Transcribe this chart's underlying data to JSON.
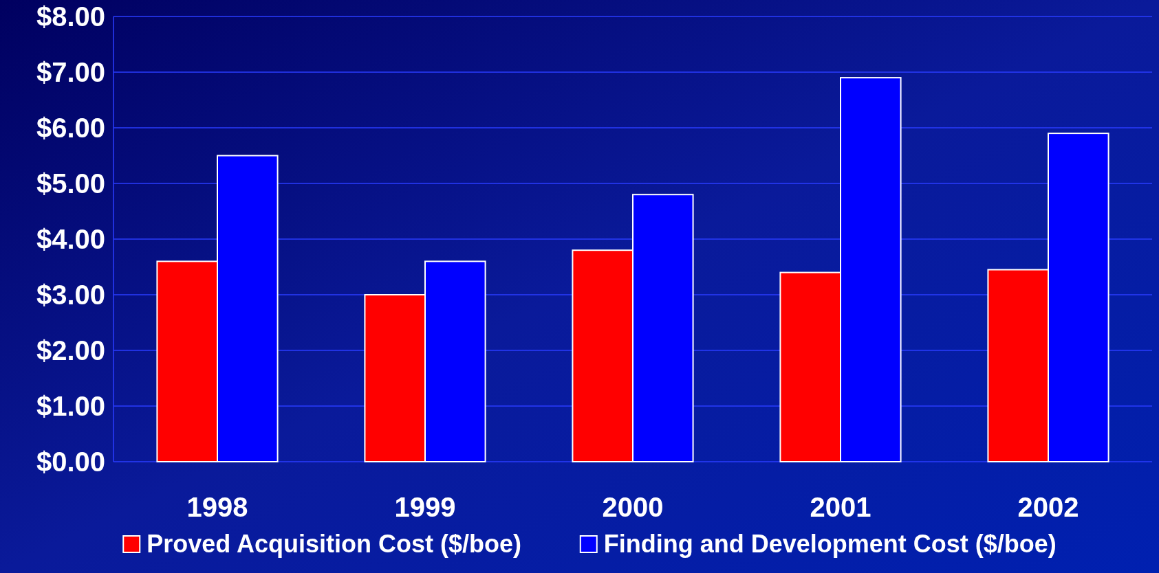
{
  "chart_data": {
    "type": "bar",
    "categories": [
      "1998",
      "1999",
      "2000",
      "2001",
      "2002"
    ],
    "series": [
      {
        "name": "Proved Acquisition Cost ($/boe)",
        "color": "#ff0000",
        "values": [
          3.6,
          3.0,
          3.8,
          3.4,
          3.45
        ]
      },
      {
        "name": "Finding and Development Cost ($/boe)",
        "color": "#0000ff",
        "values": [
          5.5,
          3.6,
          4.8,
          6.9,
          5.9
        ]
      }
    ],
    "ylim": [
      0,
      8
    ],
    "yticks": [
      {
        "value": 0,
        "label": "$0.00"
      },
      {
        "value": 1,
        "label": "$1.00"
      },
      {
        "value": 2,
        "label": "$2.00"
      },
      {
        "value": 3,
        "label": "$3.00"
      },
      {
        "value": 4,
        "label": "$4.00"
      },
      {
        "value": 5,
        "label": "$5.00"
      },
      {
        "value": 6,
        "label": "$6.00"
      },
      {
        "value": 7,
        "label": "$7.00"
      },
      {
        "value": 8,
        "label": "$8.00"
      }
    ],
    "grid": "y",
    "legend": "bottom"
  }
}
